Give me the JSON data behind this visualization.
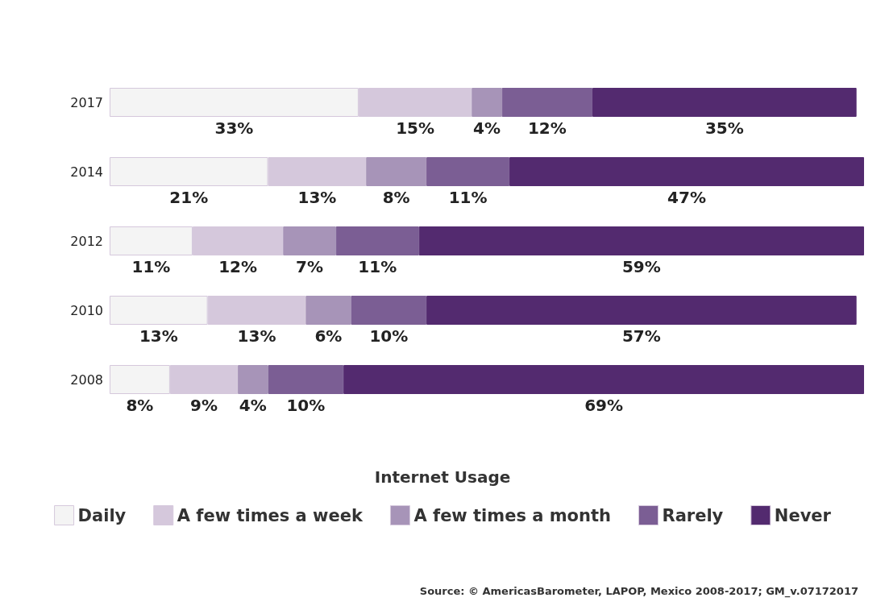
{
  "chart_data": {
    "type": "bar",
    "orientation": "horizontal",
    "stacked": true,
    "categories": [
      "2017",
      "2014",
      "2012",
      "2010",
      "2008"
    ],
    "series": [
      {
        "name": "Daily",
        "color": "#f4f4f4",
        "values": [
          33,
          21,
          11,
          13,
          8
        ],
        "value_labels": [
          "33%",
          "21%",
          "11%",
          "13%",
          "8%"
        ]
      },
      {
        "name": "A few times a week",
        "color": "#d5c8dc",
        "values": [
          15,
          13,
          12,
          13,
          9
        ],
        "value_labels": [
          "15%",
          "13%",
          "12%",
          "13%",
          "9%"
        ]
      },
      {
        "name": "A few times a month",
        "color": "#a794b8",
        "values": [
          4,
          8,
          7,
          6,
          4
        ],
        "value_labels": [
          "4%",
          "8%",
          "7%",
          "6%",
          "4%"
        ]
      },
      {
        "name": "Rarely",
        "color": "#7b5e94",
        "values": [
          12,
          11,
          11,
          10,
          10
        ],
        "value_labels": [
          "12%",
          "11%",
          "11%",
          "10%",
          "10%"
        ]
      },
      {
        "name": "Never",
        "color": "#532a6f",
        "values": [
          35,
          47,
          59,
          57,
          69
        ],
        "value_labels": [
          "35%",
          "47%",
          "59%",
          "57%",
          "69%"
        ]
      }
    ],
    "legend": "bottom",
    "legend_title": "Internet Usage",
    "annotations": [
      "Source: © AmericasBarometer, LAPOP, Mexico 2008-2017; GM_v.07172017"
    ]
  }
}
